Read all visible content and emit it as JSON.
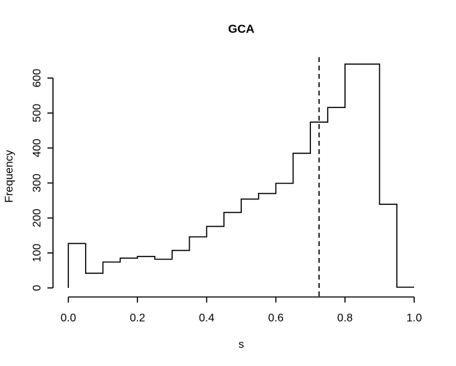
{
  "chart_data": {
    "type": "histogram",
    "title": "GCA",
    "xlabel": "s",
    "ylabel": "Frequency",
    "xlim": [
      0,
      1
    ],
    "ylim": [
      0,
      600
    ],
    "x_ticks": [
      "0.0",
      "0.2",
      "0.4",
      "0.6",
      "0.8",
      "1.0"
    ],
    "y_ticks": [
      "0",
      "100",
      "200",
      "300",
      "400",
      "500",
      "600"
    ],
    "bin_edges": [
      0,
      0.05,
      0.1,
      0.15,
      0.2,
      0.25,
      0.3,
      0.35,
      0.4,
      0.45,
      0.5,
      0.55,
      0.6,
      0.65,
      0.7,
      0.75,
      0.8,
      0.85,
      0.9,
      0.95,
      1.0
    ],
    "counts": [
      127,
      42,
      74,
      85,
      90,
      82,
      107,
      146,
      176,
      216,
      254,
      270,
      299,
      385,
      474,
      516,
      640,
      640,
      239,
      2
    ],
    "reference_line": {
      "x": 0.725,
      "style": "dashed"
    },
    "grid": false,
    "line_color": "#000000"
  }
}
